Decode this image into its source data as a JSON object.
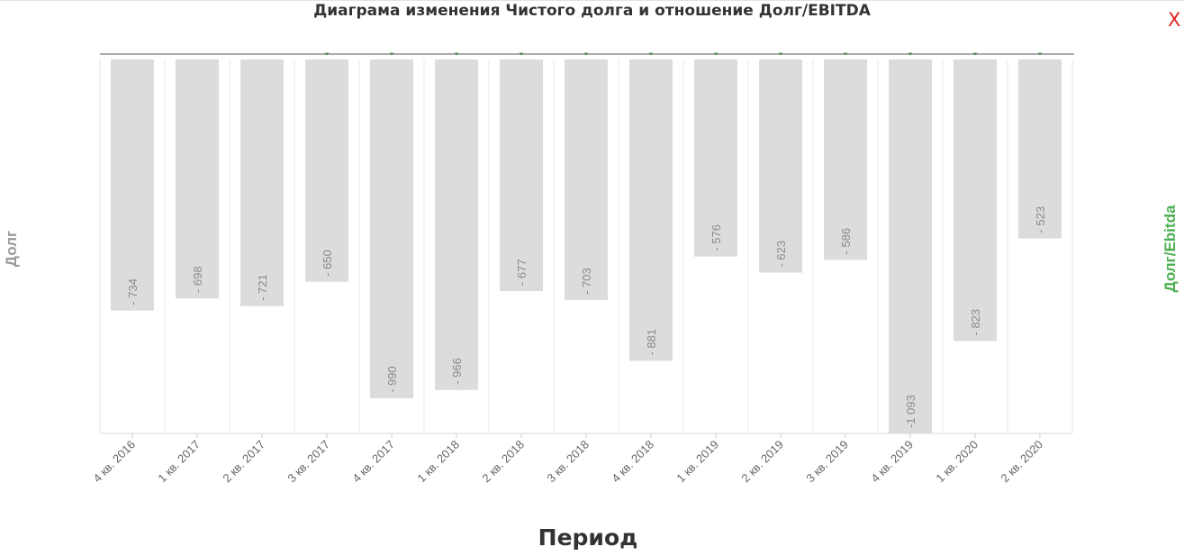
{
  "chart_data": {
    "type": "bar",
    "title": "Диаграма изменения Чистого долга и отношение Долг/EBITDA",
    "xlabel": "Период",
    "ylabel": "Долг",
    "y2label": "Долг/Ebitda",
    "categories": [
      "4 кв. 2016",
      "1 кв. 2017",
      "2 кв. 2017",
      "3 кв. 2017",
      "4 кв. 2017",
      "1 кв. 2018",
      "2 кв. 2018",
      "3 кв. 2018",
      "4 кв. 2018",
      "1 кв. 2019",
      "2 кв. 2019",
      "3 кв. 2019",
      "4 кв. 2019",
      "1 кв. 2020",
      "2 кв. 2020"
    ],
    "series": [
      {
        "values": [
          -734,
          -698,
          -721,
          -650,
          -990,
          -966,
          -677,
          -703,
          -881,
          -576,
          -623,
          -586,
          -1093,
          -823,
          -523
        ],
        "data_labels": [
          "- 734",
          "- 698",
          "- 721",
          "- 650",
          "- 990",
          "- 966",
          "- 677",
          "- 703",
          "- 881",
          "- 576",
          "- 623",
          "- 586",
          "-1 093",
          "- 823",
          "- 523"
        ],
        "color": "#dcdcdc"
      }
    ],
    "ylim": [
      -1093,
      0
    ],
    "grid": true,
    "colors": {
      "bar": "#dcdcdc",
      "label": "#8a8a8a",
      "secondary": "#4caf50",
      "grid": "#e8e8e8",
      "axis": "#555555"
    }
  },
  "ui": {
    "close_label": "X"
  }
}
